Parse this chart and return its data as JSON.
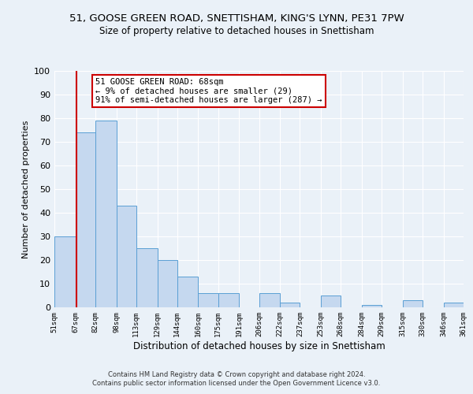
{
  "title": "51, GOOSE GREEN ROAD, SNETTISHAM, KING'S LYNN, PE31 7PW",
  "subtitle": "Size of property relative to detached houses in Snettisham",
  "xlabel": "Distribution of detached houses by size in Snettisham",
  "ylabel": "Number of detached properties",
  "bar_edges": [
    51,
    67,
    82,
    98,
    113,
    129,
    144,
    160,
    175,
    191,
    206,
    222,
    237,
    253,
    268,
    284,
    299,
    315,
    330,
    346,
    361
  ],
  "bar_heights": [
    30,
    74,
    79,
    43,
    25,
    20,
    13,
    6,
    6,
    0,
    6,
    2,
    0,
    5,
    0,
    1,
    0,
    3,
    0,
    2
  ],
  "bar_color": "#c5d8ef",
  "bar_edge_color": "#5a9fd4",
  "reference_line_x": 68,
  "reference_line_color": "#cc0000",
  "annotation_title": "51 GOOSE GREEN ROAD: 68sqm",
  "annotation_line1": "← 9% of detached houses are smaller (29)",
  "annotation_line2": "91% of semi-detached houses are larger (287) →",
  "annotation_box_color": "#ffffff",
  "annotation_box_edge": "#cc0000",
  "ylim": [
    0,
    100
  ],
  "xlim": [
    51,
    361
  ],
  "tick_labels": [
    "51sqm",
    "67sqm",
    "82sqm",
    "98sqm",
    "113sqm",
    "129sqm",
    "144sqm",
    "160sqm",
    "175sqm",
    "191sqm",
    "206sqm",
    "222sqm",
    "237sqm",
    "253sqm",
    "268sqm",
    "284sqm",
    "299sqm",
    "315sqm",
    "330sqm",
    "346sqm",
    "361sqm"
  ],
  "footer1": "Contains HM Land Registry data © Crown copyright and database right 2024.",
  "footer2": "Contains public sector information licensed under the Open Government Licence v3.0.",
  "bg_color": "#eaf1f8",
  "plot_bg_color": "#eaf1f8"
}
